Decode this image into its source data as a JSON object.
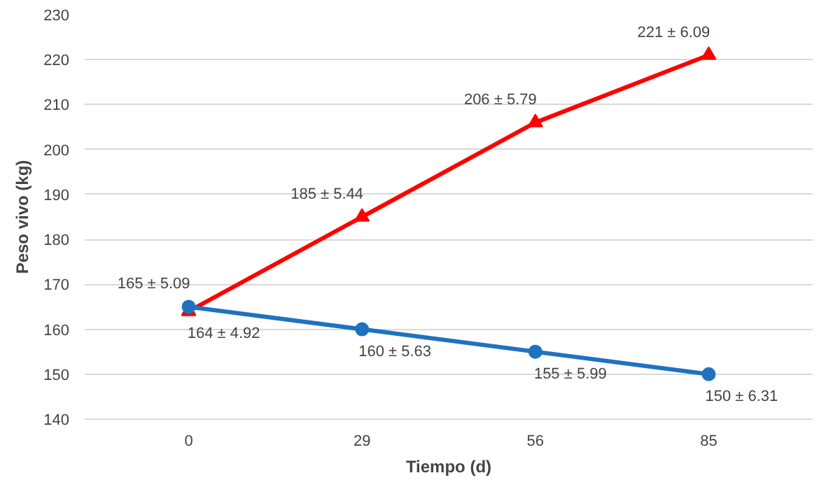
{
  "chart_data": {
    "type": "line",
    "xlabel": "Tiempo (d)",
    "ylabel": "Peso vivo (kg)",
    "categories": [
      "0",
      "29",
      "56",
      "85"
    ],
    "series": [
      {
        "color": "#ff0000",
        "marker": "triangle",
        "values": [
          164,
          185,
          206,
          221
        ],
        "value_labels": [
          "164 ± 4.92",
          "185 ± 5.44",
          "206 ± 5.79",
          "221 ± 6.09"
        ]
      },
      {
        "color": "#1f72c0",
        "marker": "circle",
        "values": [
          165,
          160,
          155,
          150
        ],
        "value_labels": [
          "165 ± 5.09",
          "160  ± 5.63",
          "155 ± 5.99",
          "150  ± 6.31"
        ]
      }
    ],
    "ylim": [
      140,
      230
    ],
    "yticks": [
      140,
      150,
      160,
      170,
      180,
      190,
      200,
      210,
      220,
      230
    ],
    "grid": "y"
  }
}
